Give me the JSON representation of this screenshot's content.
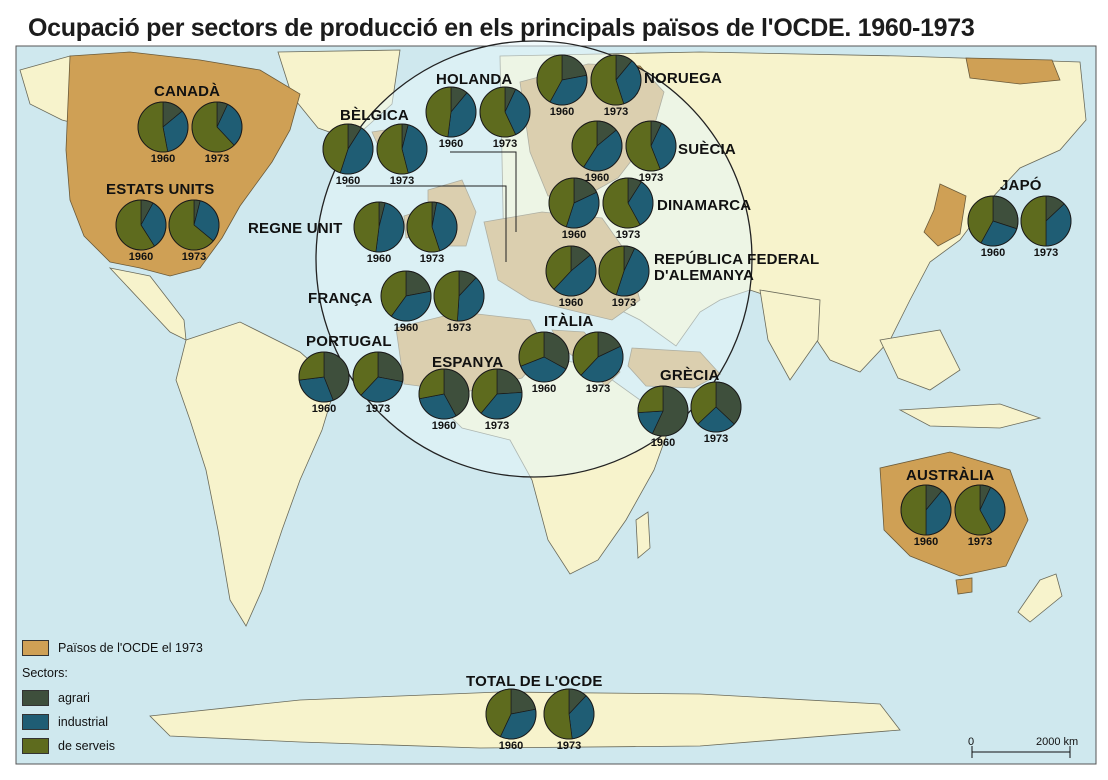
{
  "title": "Ocupació per sectors de producció en els principals països de l'OCDE. 1960-1973",
  "colors": {
    "ocean": "#cfe8ee",
    "land": "#f7f3cc",
    "oecd": "#cfa055",
    "circle": "#e6f5f9",
    "agrari": "#3e4f3c",
    "industrial": "#1f5d74",
    "serveis": "#5e6b1e"
  },
  "legend": {
    "oecd": "Països de l'OCDE el 1973",
    "sectors_title": "Sectors:",
    "items": [
      {
        "key": "agrari",
        "label": "agrari",
        "color": "#3e4f3c"
      },
      {
        "key": "industrial",
        "label": "industrial",
        "color": "#1f5d74"
      },
      {
        "key": "serveis",
        "label": "de serveis",
        "color": "#5e6b1e"
      }
    ]
  },
  "scale": {
    "zero": "0",
    "end": "2000 km"
  },
  "chart_data": {
    "type": "pie",
    "sector_order": [
      "agrari",
      "industrial",
      "de serveis"
    ],
    "countries": [
      {
        "name": "CANADÀ",
        "years": [
          "1960",
          "1973"
        ],
        "values": [
          [
            14,
            33,
            53
          ],
          [
            7,
            31,
            62
          ]
        ]
      },
      {
        "name": "ESTATS UNITS",
        "years": [
          "1960",
          "1973"
        ],
        "values": [
          [
            8,
            33,
            59
          ],
          [
            4,
            32,
            64
          ]
        ]
      },
      {
        "name": "BÈLGICA",
        "years": [
          "1960",
          "1973"
        ],
        "values": [
          [
            9,
            46,
            45
          ],
          [
            4,
            42,
            54
          ]
        ]
      },
      {
        "name": "HOLANDA",
        "years": [
          "1960",
          "1973"
        ],
        "values": [
          [
            11,
            41,
            48
          ],
          [
            7,
            36,
            57
          ]
        ]
      },
      {
        "name": "NORUEGA",
        "years": [
          "1960",
          "1973"
        ],
        "values": [
          [
            22,
            36,
            42
          ],
          [
            11,
            34,
            55
          ]
        ]
      },
      {
        "name": "SUÈCIA",
        "years": [
          "1960",
          "1973"
        ],
        "values": [
          [
            14,
            45,
            41
          ],
          [
            7,
            37,
            56
          ]
        ]
      },
      {
        "name": "DINAMARCA",
        "years": [
          "1960",
          "1973"
        ],
        "values": [
          [
            18,
            37,
            45
          ],
          [
            9,
            33,
            58
          ]
        ]
      },
      {
        "name": "REGNE UNIT",
        "years": [
          "1960",
          "1973"
        ],
        "values": [
          [
            4,
            48,
            48
          ],
          [
            3,
            42,
            55
          ]
        ]
      },
      {
        "name": "REPÚBLICA FEDERAL D'ALEMANYA",
        "years": [
          "1960",
          "1973"
        ],
        "values": [
          [
            14,
            48,
            38
          ],
          [
            7,
            48,
            45
          ]
        ]
      },
      {
        "name": "FRANÇA",
        "years": [
          "1960",
          "1973"
        ],
        "values": [
          [
            22,
            38,
            40
          ],
          [
            12,
            39,
            49
          ]
        ]
      },
      {
        "name": "PORTUGAL",
        "years": [
          "1960",
          "1973"
        ],
        "values": [
          [
            44,
            29,
            27
          ],
          [
            28,
            34,
            38
          ]
        ]
      },
      {
        "name": "ESPANYA",
        "years": [
          "1960",
          "1973"
        ],
        "values": [
          [
            42,
            30,
            28
          ],
          [
            24,
            37,
            39
          ]
        ]
      },
      {
        "name": "ITÀLIA",
        "years": [
          "1960",
          "1973"
        ],
        "values": [
          [
            33,
            36,
            31
          ],
          [
            18,
            44,
            38
          ]
        ]
      },
      {
        "name": "GRÈCIA",
        "years": [
          "1960",
          "1973"
        ],
        "values": [
          [
            57,
            17,
            26
          ],
          [
            37,
            26,
            37
          ]
        ]
      },
      {
        "name": "JAPÓ",
        "years": [
          "1960",
          "1973"
        ],
        "values": [
          [
            30,
            28,
            42
          ],
          [
            13,
            37,
            50
          ]
        ]
      },
      {
        "name": "AUSTRÀLIA",
        "years": [
          "1960",
          "1973"
        ],
        "values": [
          [
            11,
            39,
            50
          ],
          [
            7,
            35,
            58
          ]
        ]
      },
      {
        "name": "TOTAL DE L'OCDE",
        "years": [
          "1960",
          "1973"
        ],
        "values": [
          [
            22,
            35,
            43
          ],
          [
            12,
            36,
            52
          ]
        ]
      }
    ]
  }
}
